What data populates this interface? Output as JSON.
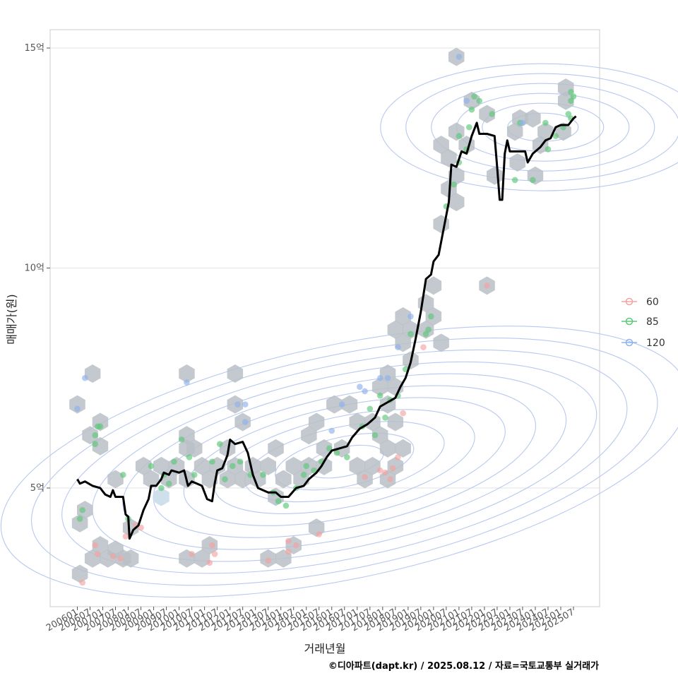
{
  "chart_data": {
    "type": "scatter",
    "title": "",
    "xlabel": "거래년월",
    "ylabel": "매매가(원)",
    "caption": "©디아파트(dapt.kr) / 2025.08.12 / 자료=국토교통부 실거래가",
    "x_ticks": [
      "200601",
      "200607",
      "200701",
      "200707",
      "200801",
      "200807",
      "200901",
      "200907",
      "201001",
      "201007",
      "201101",
      "201107",
      "201201",
      "201207",
      "201301",
      "201307",
      "201401",
      "201407",
      "201501",
      "201507",
      "201601",
      "201607",
      "201701",
      "201707",
      "201801",
      "201807",
      "201901",
      "201907",
      "202001",
      "202007",
      "202101",
      "202107",
      "202201",
      "202207",
      "202301",
      "202307",
      "202401",
      "202407",
      "202501",
      "202507"
    ],
    "y_ticks": [
      {
        "value": 5,
        "label": "5억"
      },
      {
        "value": 10,
        "label": "10억"
      },
      {
        "value": 15,
        "label": "15억"
      }
    ],
    "ylim": [
      2.3,
      15.8
    ],
    "xlim": [
      2005.0,
      2026.3
    ],
    "grid": true,
    "legend": {
      "position": "right",
      "entries": [
        {
          "label": "60",
          "color": "#f4a3a3"
        },
        {
          "label": "85",
          "color": "#5cc878"
        },
        {
          "label": "120",
          "color": "#8fb2ec"
        }
      ]
    },
    "colors": {
      "hex_fill": "#b9bfc6",
      "hex_light": "#cfe2f0",
      "contour": "#b8c8f0",
      "trend": "#000000"
    },
    "hexbins": [
      [
        2006.1,
        4.2
      ],
      [
        2006.3,
        4.5
      ],
      [
        2006.1,
        3.05
      ],
      [
        2006.6,
        3.4
      ],
      [
        2006.9,
        3.7
      ],
      [
        2007.2,
        3.4
      ],
      [
        2007.5,
        3.6
      ],
      [
        2007.8,
        3.4
      ],
      [
        2008.1,
        3.4
      ],
      [
        2006.0,
        6.9
      ],
      [
        2006.6,
        7.6
      ],
      [
        2006.5,
        6.2
      ],
      [
        2006.9,
        6.5
      ],
      [
        2006.9,
        5.95
      ],
      [
        2007.5,
        5.2
      ],
      [
        2008.1,
        4.1
      ],
      [
        2008.6,
        5.5
      ],
      [
        2008.9,
        5.2
      ],
      [
        2009.3,
        4.8
      ],
      [
        2009.3,
        5.5
      ],
      [
        2009.6,
        5.2
      ],
      [
        2009.9,
        5.5
      ],
      [
        2010.3,
        5.2
      ],
      [
        2010.3,
        5.9
      ],
      [
        2010.3,
        6.2
      ],
      [
        2010.3,
        7.6
      ],
      [
        2010.6,
        5.9
      ],
      [
        2010.9,
        5.5
      ],
      [
        2010.3,
        3.4
      ],
      [
        2010.9,
        3.4
      ],
      [
        2011.2,
        3.7
      ],
      [
        2011.2,
        5.2
      ],
      [
        2011.5,
        5.5
      ],
      [
        2011.9,
        5.2
      ],
      [
        2011.9,
        5.9
      ],
      [
        2012.2,
        5.5
      ],
      [
        2012.2,
        6.9
      ],
      [
        2012.2,
        7.6
      ],
      [
        2012.5,
        6.5
      ],
      [
        2012.5,
        5.2
      ],
      [
        2012.9,
        5.5
      ],
      [
        2013.1,
        5.2
      ],
      [
        2013.5,
        5.5
      ],
      [
        2013.5,
        3.4
      ],
      [
        2013.8,
        4.8
      ],
      [
        2013.8,
        5.9
      ],
      [
        2014.1,
        3.4
      ],
      [
        2014.1,
        5.2
      ],
      [
        2014.5,
        3.7
      ],
      [
        2014.5,
        5.5
      ],
      [
        2014.8,
        5.2
      ],
      [
        2015.1,
        5.5
      ],
      [
        2015.1,
        6.2
      ],
      [
        2015.4,
        4.1
      ],
      [
        2015.4,
        6.5
      ],
      [
        2015.7,
        5.9
      ],
      [
        2015.7,
        5.5
      ],
      [
        2016.1,
        6.9
      ],
      [
        2016.4,
        5.9
      ],
      [
        2016.7,
        6.9
      ],
      [
        2017.0,
        5.5
      ],
      [
        2017.0,
        6.5
      ],
      [
        2017.3,
        5.2
      ],
      [
        2017.6,
        5.5
      ],
      [
        2017.6,
        6.5
      ],
      [
        2017.9,
        6.2
      ],
      [
        2017.9,
        7.3
      ],
      [
        2018.2,
        5.2
      ],
      [
        2018.2,
        5.9
      ],
      [
        2018.2,
        6.9
      ],
      [
        2018.2,
        7.6
      ],
      [
        2018.5,
        5.5
      ],
      [
        2018.5,
        6.5
      ],
      [
        2018.5,
        7.3
      ],
      [
        2018.5,
        8.6
      ],
      [
        2018.8,
        5.9
      ],
      [
        2018.8,
        8.3
      ],
      [
        2018.8,
        8.9
      ],
      [
        2019.1,
        7.9
      ],
      [
        2019.1,
        8.6
      ],
      [
        2019.7,
        8.6
      ],
      [
        2019.7,
        9.2
      ],
      [
        2020.0,
        8.9
      ],
      [
        2020.0,
        9.6
      ],
      [
        2020.3,
        8.3
      ],
      [
        2020.3,
        11.0
      ],
      [
        2020.3,
        12.8
      ],
      [
        2020.6,
        11.8
      ],
      [
        2020.6,
        12.5
      ],
      [
        2020.9,
        11.5
      ],
      [
        2020.9,
        12.1
      ],
      [
        2020.9,
        13.1
      ],
      [
        2020.9,
        14.8
      ],
      [
        2021.3,
        12.8
      ],
      [
        2021.5,
        13.8
      ],
      [
        2022.1,
        9.6
      ],
      [
        2022.1,
        13.5
      ],
      [
        2022.4,
        12.1
      ],
      [
        2023.2,
        13.1
      ],
      [
        2023.3,
        12.4
      ],
      [
        2023.4,
        13.4
      ],
      [
        2023.9,
        13.4
      ],
      [
        2024.0,
        12.1
      ],
      [
        2024.2,
        12.8
      ],
      [
        2024.4,
        13.1
      ],
      [
        2025.1,
        13.1
      ],
      [
        2025.2,
        14.1
      ],
      [
        2025.2,
        13.8
      ]
    ],
    "hexbins_light": [
      [
        2009.3,
        4.8
      ]
    ],
    "series": [
      {
        "name": "60",
        "color": "#f4a3a3",
        "points": [
          [
            2006.2,
            2.85
          ],
          [
            2006.7,
            3.7
          ],
          [
            2006.8,
            3.5
          ],
          [
            2007.4,
            3.45
          ],
          [
            2007.9,
            3.9
          ],
          [
            2008.3,
            4.15
          ],
          [
            2008.5,
            4.1
          ],
          [
            2007.7,
            3.4
          ],
          [
            2010.5,
            3.5
          ],
          [
            2011.2,
            3.3
          ],
          [
            2011.4,
            3.5
          ],
          [
            2011.3,
            3.7
          ],
          [
            2013.5,
            3.35
          ],
          [
            2014.3,
            3.55
          ],
          [
            2014.6,
            3.7
          ],
          [
            2014.3,
            3.8
          ],
          [
            2015.5,
            3.95
          ],
          [
            2017.3,
            5.25
          ],
          [
            2017.9,
            5.4
          ],
          [
            2018.1,
            5.35
          ],
          [
            2018.3,
            5.2
          ],
          [
            2018.4,
            5.45
          ],
          [
            2018.6,
            5.7
          ],
          [
            2018.8,
            6.7
          ],
          [
            2019.6,
            8.2
          ],
          [
            2022.1,
            9.6
          ]
        ]
      },
      {
        "name": "85",
        "color": "#5cc878",
        "points": [
          [
            2006.1,
            4.3
          ],
          [
            2006.2,
            4.5
          ],
          [
            2006.7,
            6.2
          ],
          [
            2006.8,
            6.4
          ],
          [
            2006.9,
            6.4
          ],
          [
            2006.7,
            6.0
          ],
          [
            2007.8,
            5.3
          ],
          [
            2008.0,
            4.3
          ],
          [
            2008.9,
            5.5
          ],
          [
            2009.3,
            5.0
          ],
          [
            2009.4,
            5.3
          ],
          [
            2009.6,
            5.1
          ],
          [
            2009.8,
            5.6
          ],
          [
            2010.1,
            6.1
          ],
          [
            2010.4,
            5.7
          ],
          [
            2010.6,
            5.3
          ],
          [
            2011.3,
            5.6
          ],
          [
            2011.6,
            6.0
          ],
          [
            2011.8,
            5.2
          ],
          [
            2012.1,
            5.5
          ],
          [
            2012.4,
            5.6
          ],
          [
            2012.8,
            5.3
          ],
          [
            2013.3,
            5.3
          ],
          [
            2013.7,
            4.9
          ],
          [
            2013.9,
            4.7
          ],
          [
            2014.2,
            4.6
          ],
          [
            2014.6,
            5.0
          ],
          [
            2014.9,
            5.3
          ],
          [
            2015.0,
            5.5
          ],
          [
            2015.3,
            5.4
          ],
          [
            2015.6,
            5.6
          ],
          [
            2015.9,
            5.9
          ],
          [
            2016.2,
            5.8
          ],
          [
            2016.6,
            5.7
          ],
          [
            2017.2,
            6.4
          ],
          [
            2017.5,
            6.8
          ],
          [
            2017.7,
            6.2
          ],
          [
            2017.9,
            7.1
          ],
          [
            2018.1,
            6.6
          ],
          [
            2018.3,
            7.0
          ],
          [
            2018.6,
            7.1
          ],
          [
            2018.9,
            7.7
          ],
          [
            2019.1,
            8.5
          ],
          [
            2019.7,
            8.5
          ],
          [
            2019.8,
            8.6
          ],
          [
            2019.9,
            8.9
          ],
          [
            2020.5,
            11.4
          ],
          [
            2020.8,
            11.9
          ],
          [
            2021.0,
            12.4
          ],
          [
            2021.0,
            13.0
          ],
          [
            2021.3,
            12.7
          ],
          [
            2021.4,
            13.2
          ],
          [
            2021.5,
            13.6
          ],
          [
            2021.6,
            13.9
          ],
          [
            2021.8,
            13.8
          ],
          [
            2022.3,
            13.5
          ],
          [
            2023.2,
            12.0
          ],
          [
            2023.4,
            13.3
          ],
          [
            2023.9,
            12.0
          ],
          [
            2024.4,
            13.3
          ],
          [
            2024.5,
            12.7
          ],
          [
            2024.8,
            13.0
          ],
          [
            2025.1,
            13.2
          ],
          [
            2025.3,
            13.5
          ],
          [
            2025.4,
            14.0
          ],
          [
            2025.4,
            13.8
          ],
          [
            2025.4,
            13.4
          ],
          [
            2025.5,
            13.9
          ]
        ]
      },
      {
        "name": "120",
        "color": "#8fb2ec",
        "points": [
          [
            2006.3,
            7.5
          ],
          [
            2006.0,
            6.8
          ],
          [
            2010.3,
            7.4
          ],
          [
            2012.3,
            6.9
          ],
          [
            2012.6,
            6.9
          ],
          [
            2012.6,
            6.5
          ],
          [
            2016.0,
            6.3
          ],
          [
            2016.4,
            6.9
          ],
          [
            2017.1,
            7.3
          ],
          [
            2017.3,
            7.2
          ],
          [
            2017.9,
            7.5
          ],
          [
            2018.2,
            7.5
          ],
          [
            2018.6,
            8.2
          ],
          [
            2019.1,
            8.9
          ],
          [
            2021.0,
            14.8
          ],
          [
            2021.3,
            13.8
          ],
          [
            2023.5,
            13.3
          ]
        ]
      }
    ],
    "trend": [
      [
        2006.0,
        5.2
      ],
      [
        2006.1,
        5.1
      ],
      [
        2006.3,
        5.15
      ],
      [
        2006.6,
        5.05
      ],
      [
        2006.9,
        5.0
      ],
      [
        2007.1,
        4.85
      ],
      [
        2007.3,
        4.8
      ],
      [
        2007.4,
        4.95
      ],
      [
        2007.5,
        4.8
      ],
      [
        2007.8,
        4.8
      ],
      [
        2007.9,
        4.4
      ],
      [
        2008.0,
        4.35
      ],
      [
        2008.05,
        3.85
      ],
      [
        2008.2,
        4.05
      ],
      [
        2008.4,
        4.15
      ],
      [
        2008.6,
        4.5
      ],
      [
        2008.8,
        4.75
      ],
      [
        2008.9,
        5.05
      ],
      [
        2009.1,
        5.05
      ],
      [
        2009.3,
        5.2
      ],
      [
        2009.4,
        5.35
      ],
      [
        2009.6,
        5.3
      ],
      [
        2009.7,
        5.4
      ],
      [
        2010.0,
        5.35
      ],
      [
        2010.2,
        5.4
      ],
      [
        2010.35,
        5.05
      ],
      [
        2010.5,
        5.15
      ],
      [
        2010.7,
        5.1
      ],
      [
        2010.9,
        5.05
      ],
      [
        2011.1,
        4.75
      ],
      [
        2011.3,
        4.7
      ],
      [
        2011.4,
        5.1
      ],
      [
        2011.5,
        5.4
      ],
      [
        2011.7,
        5.45
      ],
      [
        2011.9,
        5.75
      ],
      [
        2012.0,
        6.1
      ],
      [
        2012.2,
        6.0
      ],
      [
        2012.5,
        6.05
      ],
      [
        2012.7,
        5.8
      ],
      [
        2012.9,
        5.3
      ],
      [
        2013.1,
        5.0
      ],
      [
        2013.3,
        4.95
      ],
      [
        2013.5,
        4.9
      ],
      [
        2013.8,
        4.9
      ],
      [
        2014.0,
        4.8
      ],
      [
        2014.3,
        4.8
      ],
      [
        2014.6,
        5.0
      ],
      [
        2014.9,
        5.05
      ],
      [
        2015.1,
        5.2
      ],
      [
        2015.4,
        5.35
      ],
      [
        2015.6,
        5.5
      ],
      [
        2015.8,
        5.7
      ],
      [
        2016.0,
        5.85
      ],
      [
        2016.3,
        5.9
      ],
      [
        2016.6,
        5.95
      ],
      [
        2016.8,
        6.15
      ],
      [
        2017.1,
        6.35
      ],
      [
        2017.4,
        6.45
      ],
      [
        2017.7,
        6.6
      ],
      [
        2017.9,
        6.85
      ],
      [
        2018.2,
        6.95
      ],
      [
        2018.5,
        7.05
      ],
      [
        2018.7,
        7.3
      ],
      [
        2018.9,
        7.5
      ],
      [
        2019.1,
        7.85
      ],
      [
        2019.3,
        8.4
      ],
      [
        2019.5,
        9.0
      ],
      [
        2019.7,
        9.75
      ],
      [
        2019.9,
        9.85
      ],
      [
        2020.0,
        10.15
      ],
      [
        2020.2,
        10.3
      ],
      [
        2020.4,
        10.9
      ],
      [
        2020.6,
        11.5
      ],
      [
        2020.7,
        12.35
      ],
      [
        2020.9,
        12.3
      ],
      [
        2021.1,
        12.65
      ],
      [
        2021.3,
        12.6
      ],
      [
        2021.5,
        13.0
      ],
      [
        2021.7,
        13.3
      ],
      [
        2021.8,
        13.05
      ],
      [
        2022.1,
        13.05
      ],
      [
        2022.4,
        13.0
      ],
      [
        2022.5,
        12.3
      ],
      [
        2022.6,
        11.55
      ],
      [
        2022.7,
        11.55
      ],
      [
        2022.8,
        12.6
      ],
      [
        2022.9,
        12.9
      ],
      [
        2023.0,
        12.65
      ],
      [
        2023.3,
        12.65
      ],
      [
        2023.6,
        12.65
      ],
      [
        2023.7,
        12.4
      ],
      [
        2023.9,
        12.6
      ],
      [
        2024.2,
        12.75
      ],
      [
        2024.4,
        12.9
      ],
      [
        2024.6,
        12.95
      ],
      [
        2024.8,
        13.2
      ],
      [
        2025.0,
        13.25
      ],
      [
        2025.3,
        13.25
      ],
      [
        2025.5,
        13.4
      ],
      [
        2025.6,
        13.45
      ]
    ],
    "density_center": [
      2016.5,
      5.6
    ],
    "density_center_upper": [
      2024.3,
      13.2
    ]
  }
}
